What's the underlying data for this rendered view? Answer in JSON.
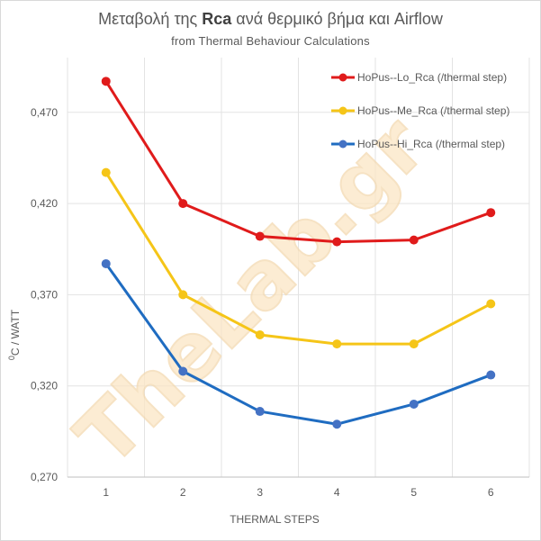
{
  "chart_data": {
    "type": "line",
    "title_parts": {
      "prefix": "Μεταβολή της ",
      "bold": "Rca",
      "suffix": " ανά θερμικό βήμα και  Airflow"
    },
    "subtitle": "from Thermal Behaviour Calculations",
    "xlabel": "THERMAL  STEPS",
    "ylabel": "C / WATT",
    "ylabel_superscript": "0",
    "x": [
      1,
      2,
      3,
      4,
      5,
      6
    ],
    "ylim": [
      0.27,
      0.5
    ],
    "yticks": [
      0.27,
      0.32,
      0.37,
      0.42,
      0.47
    ],
    "ytick_labels": [
      "0,270",
      "0,320",
      "0,370",
      "0,420",
      "0,470"
    ],
    "grid": true,
    "legend_position": "top-right",
    "series": [
      {
        "name": "HoPus--Lo_Rca (/thermal step)",
        "color": "#e01b1b",
        "values": [
          0.487,
          0.42,
          0.402,
          0.399,
          0.4,
          0.415
        ]
      },
      {
        "name": "HoPus--Me_Rca (/thermal step)",
        "color": "#f5c518",
        "values": [
          0.437,
          0.37,
          0.348,
          0.343,
          0.343,
          0.365
        ]
      },
      {
        "name": "HoPus--Hi_Rca (/thermal step)",
        "color": "#1f6cc1",
        "marker_color": "#4472c4",
        "values": [
          0.387,
          0.328,
          0.306,
          0.299,
          0.31,
          0.326
        ]
      }
    ],
    "watermark": "TheLab.gr"
  }
}
